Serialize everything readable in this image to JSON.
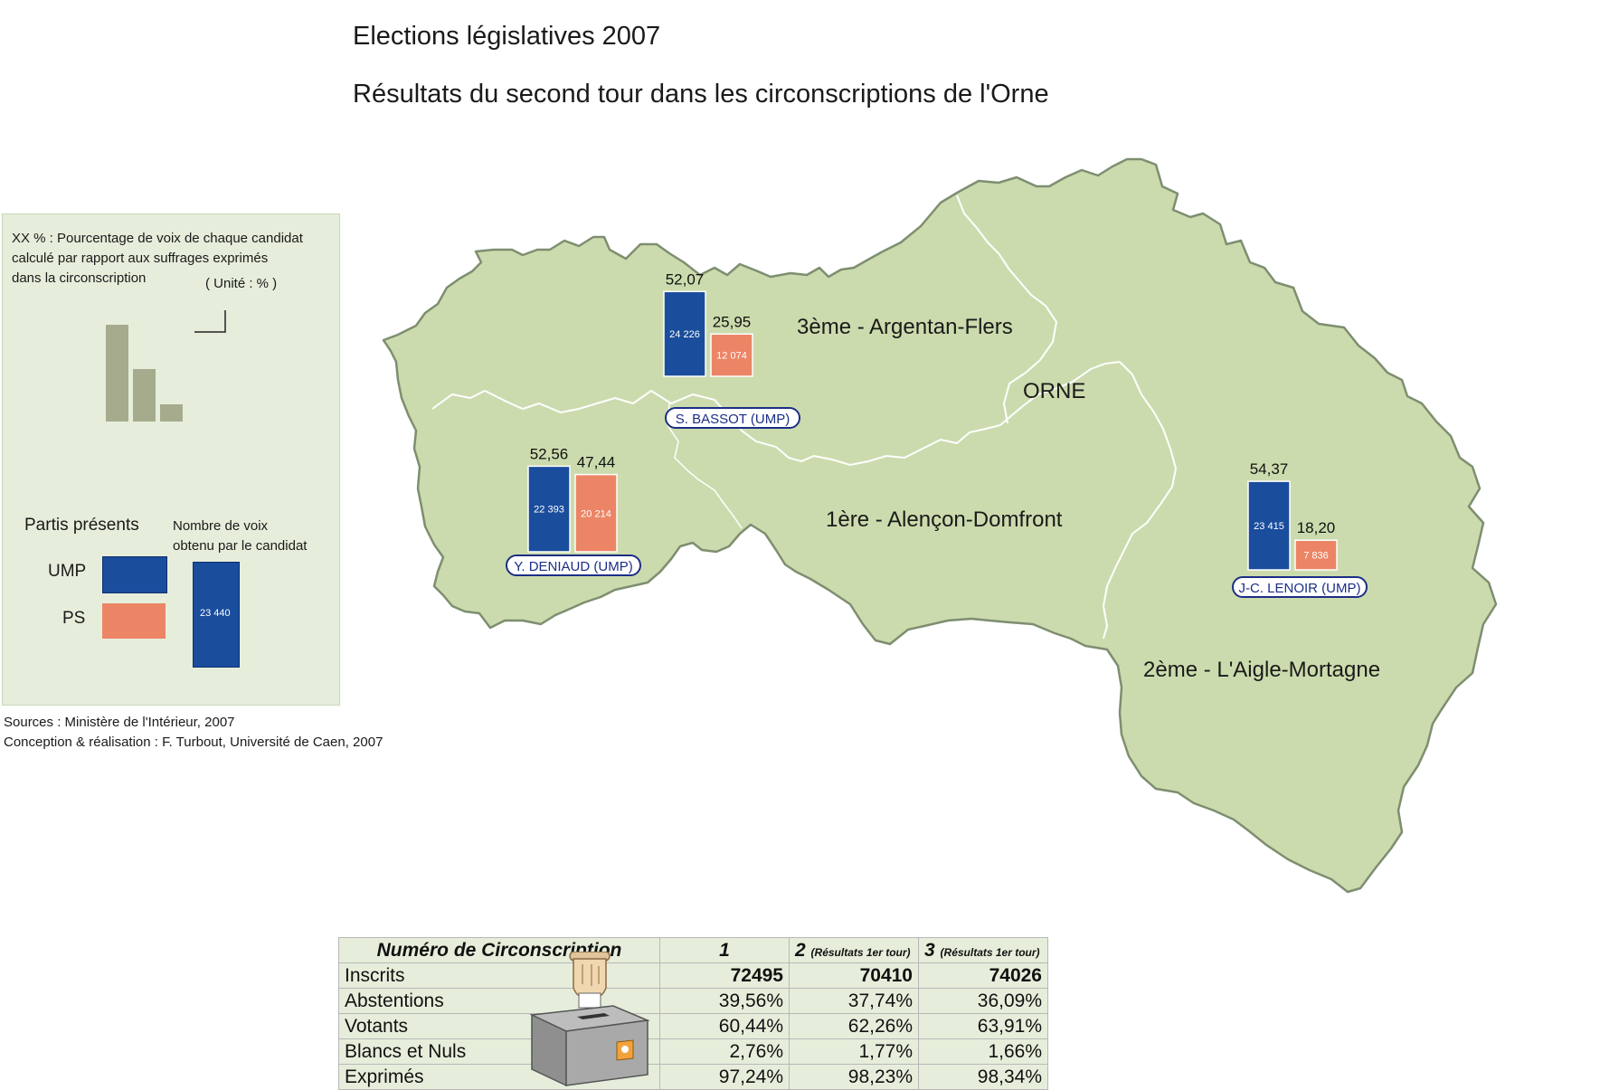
{
  "title": "Elections législatives 2007",
  "subtitle": "Résultats du second tour dans les circonscriptions de l'Orne",
  "legend": {
    "line1": "XX % : Pourcentage de voix de chaque candidat",
    "line2": "calculé par rapport aux suffrages exprimés",
    "line3": "dans la circonscription",
    "unit": "( Unité : % )",
    "parties_title": "Partis présents",
    "votes_line1": "Nombre de voix",
    "votes_line2": "obtenu par le candidat",
    "example_votes": "23 440",
    "parties": [
      {
        "label": "UMP",
        "color": "#1a4d9c"
      },
      {
        "label": "PS",
        "color": "#ec8566"
      }
    ]
  },
  "sources": {
    "line1": "Sources : Ministère de l'Intérieur, 2007",
    "line2": "Conception & réalisation : F. Turbout, Université de Caen, 2007"
  },
  "map": {
    "department": "ORNE",
    "colors": {
      "land": "#ccdbad",
      "border": "#7e8e70",
      "ump": "#1a4d9c",
      "ps": "#ec8566"
    },
    "regions": [
      {
        "label": "3ème - Argentan-Flers"
      },
      {
        "label": "1ère - Alençon-Domfront"
      },
      {
        "label": "2ème - L'Aigle-Mortagne"
      }
    ],
    "results": [
      {
        "circo": 3,
        "candidate": "S. BASSOT (UMP)",
        "ump_pct": 52.07,
        "ump_pct_label": "52,07",
        "ump_votes": "24 226",
        "ps_pct": 25.95,
        "ps_pct_label": "25,95",
        "ps_votes": "12 074"
      },
      {
        "circo": 1,
        "candidate": "Y. DENIAUD (UMP)",
        "ump_pct": 52.56,
        "ump_pct_label": "52,56",
        "ump_votes": "22 393",
        "ps_pct": 47.44,
        "ps_pct_label": "47,44",
        "ps_votes": "20 214"
      },
      {
        "circo": 2,
        "candidate": "J-C. LENOIR (UMP)",
        "ump_pct": 54.37,
        "ump_pct_label": "54,37",
        "ump_votes": "23 415",
        "ps_pct": 18.2,
        "ps_pct_label": "18,20",
        "ps_votes": "7 836"
      }
    ]
  },
  "table": {
    "header": [
      "Numéro de Circonscription",
      "1",
      "2",
      "(Résultats 1er tour)",
      "3",
      "(Résultats 1er tour)"
    ],
    "rows": [
      {
        "label": "Inscrits",
        "values": [
          "72495",
          "70410",
          "74026"
        ]
      },
      {
        "label": "Abstentions",
        "values": [
          "39,56%",
          "37,74%",
          "36,09%"
        ]
      },
      {
        "label": "Votants",
        "values": [
          "60,44%",
          "62,26%",
          "63,91%"
        ]
      },
      {
        "label": "Blancs et Nuls",
        "values": [
          "2,76%",
          "1,77%",
          "1,66%"
        ]
      },
      {
        "label": "Exprimés",
        "values": [
          "97,24%",
          "98,23%",
          "98,34%"
        ]
      }
    ]
  }
}
